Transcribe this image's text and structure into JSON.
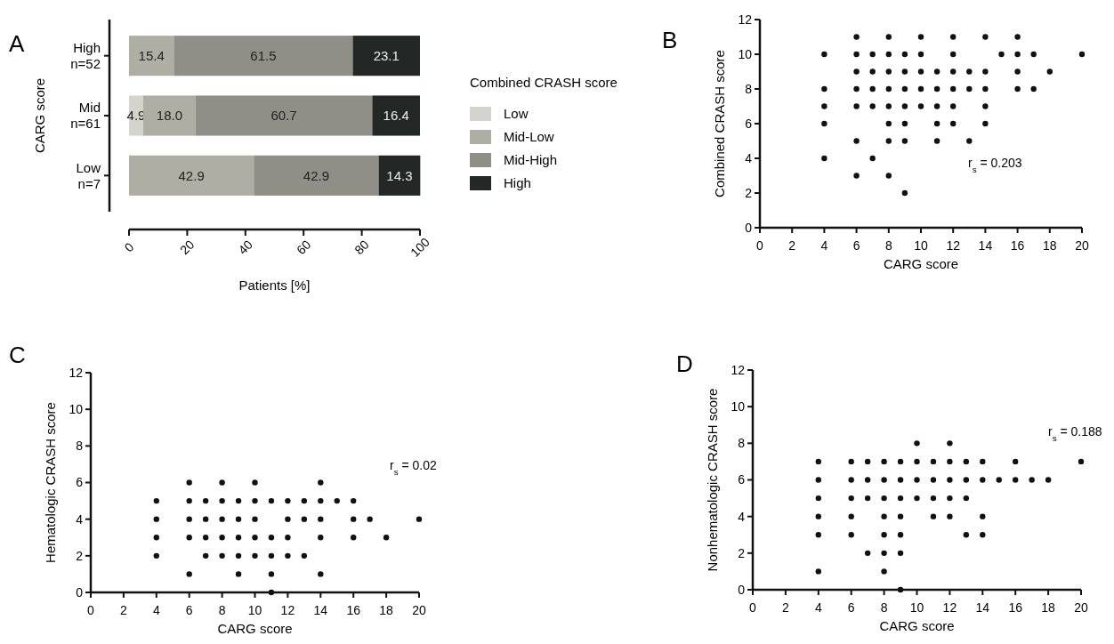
{
  "chart_data": [
    {
      "type": "bar",
      "title": "A",
      "orientation": "horizontal",
      "stacked": true,
      "categories": [
        "High\nn=52",
        "Mid\nn=61",
        "Low\nn=7"
      ],
      "ylabel": "CARG score",
      "xlabel": "Patients [%]",
      "xlim": [
        0,
        100
      ],
      "xticks": [
        0,
        20,
        40,
        60,
        80,
        100
      ],
      "legend": "right",
      "legend_title": "Combined CRASH score",
      "series": [
        {
          "name": "Low",
          "color": "#d4d4cc",
          "values": [
            null,
            4.9,
            null
          ],
          "value_labels": [
            null,
            "4.9",
            null
          ]
        },
        {
          "name": "Mid-Low",
          "color": "#aeaea5",
          "values": [
            15.4,
            18.0,
            42.9
          ],
          "value_labels": [
            "15.4",
            "18.0",
            "42.9"
          ]
        },
        {
          "name": "Mid-High",
          "color": "#8f8f88",
          "values": [
            61.5,
            60.7,
            42.9
          ],
          "value_labels": [
            "61.5",
            "60.7",
            "42.9"
          ]
        },
        {
          "name": "High",
          "color": "#232826",
          "values": [
            23.1,
            16.4,
            14.3
          ],
          "value_labels": [
            "23.1",
            "16.4",
            "14.3"
          ]
        }
      ]
    },
    {
      "type": "scatter",
      "title": "B",
      "xlabel": "CARG score",
      "ylabel": "Combined CRASH score",
      "xlim": [
        0,
        20
      ],
      "xticks": [
        0,
        2,
        4,
        6,
        8,
        10,
        12,
        14,
        16,
        18,
        20
      ],
      "ylim": [
        0,
        12
      ],
      "yticks": [
        0,
        2,
        4,
        6,
        8,
        10,
        12
      ],
      "marker": "circle",
      "annotations": [
        "r$_{s}$ = 0.203"
      ],
      "series": [
        {
          "color": "#111111",
          "x": [
            6,
            8,
            10,
            12,
            14,
            16,
            4,
            6,
            7,
            8,
            9,
            10,
            12,
            15,
            16,
            17,
            20,
            6,
            7,
            8,
            9,
            10,
            11,
            12,
            13,
            14,
            16,
            18,
            4,
            6,
            7,
            8,
            9,
            10,
            11,
            12,
            13,
            14,
            16,
            17,
            4,
            6,
            7,
            8,
            9,
            10,
            11,
            12,
            14,
            4,
            8,
            9,
            11,
            12,
            14,
            6,
            8,
            9,
            11,
            13,
            4,
            7,
            6,
            8,
            9
          ],
          "values": [
            11,
            11,
            11,
            11,
            11,
            11,
            10,
            10,
            10,
            10,
            10,
            10,
            10,
            10,
            10,
            10,
            10,
            9,
            9,
            9,
            9,
            9,
            9,
            9,
            9,
            9,
            9,
            9,
            8,
            8,
            8,
            8,
            8,
            8,
            8,
            8,
            8,
            8,
            8,
            8,
            7,
            7,
            7,
            7,
            7,
            7,
            7,
            7,
            7,
            6,
            6,
            6,
            6,
            6,
            6,
            5,
            5,
            5,
            5,
            5,
            4,
            4,
            3,
            3,
            2
          ]
        }
      ]
    },
    {
      "type": "scatter",
      "title": "C",
      "xlabel": "CARG score",
      "ylabel": "Hematologic CRASH score",
      "xlim": [
        0,
        20
      ],
      "xticks": [
        0,
        2,
        4,
        6,
        8,
        10,
        12,
        14,
        16,
        18,
        20
      ],
      "ylim": [
        0,
        12
      ],
      "yticks": [
        0,
        2,
        4,
        6,
        8,
        10,
        12
      ],
      "marker": "circle",
      "annotations": [
        "r$_{s}$ = 0.02"
      ],
      "series": [
        {
          "color": "#111111",
          "x": [
            6,
            8,
            10,
            14,
            4,
            6,
            7,
            8,
            9,
            10,
            11,
            12,
            13,
            14,
            15,
            16,
            4,
            6,
            7,
            8,
            9,
            10,
            12,
            13,
            14,
            16,
            17,
            20,
            4,
            6,
            7,
            8,
            9,
            10,
            11,
            12,
            14,
            16,
            18,
            4,
            7,
            8,
            9,
            10,
            11,
            12,
            13,
            6,
            9,
            11,
            14,
            11
          ],
          "values": [
            6,
            6,
            6,
            6,
            5,
            5,
            5,
            5,
            5,
            5,
            5,
            5,
            5,
            5,
            5,
            5,
            4,
            4,
            4,
            4,
            4,
            4,
            4,
            4,
            4,
            4,
            4,
            4,
            3,
            3,
            3,
            3,
            3,
            3,
            3,
            3,
            3,
            3,
            3,
            2,
            2,
            2,
            2,
            2,
            2,
            2,
            2,
            1,
            1,
            1,
            1,
            0
          ]
        }
      ]
    },
    {
      "type": "scatter",
      "title": "D",
      "xlabel": "CARG score",
      "ylabel": "Nonhematologic CRASH score",
      "xlim": [
        0,
        20
      ],
      "xticks": [
        0,
        2,
        4,
        6,
        8,
        10,
        12,
        14,
        16,
        18,
        20
      ],
      "ylim": [
        0,
        12
      ],
      "yticks": [
        0,
        2,
        4,
        6,
        8,
        10,
        12
      ],
      "marker": "circle",
      "annotations": [
        "r$_{s}$ = 0.188"
      ],
      "series": [
        {
          "color": "#111111",
          "x": [
            10,
            12,
            4,
            6,
            7,
            8,
            9,
            10,
            11,
            12,
            13,
            14,
            16,
            20,
            4,
            6,
            7,
            8,
            9,
            10,
            11,
            12,
            13,
            14,
            15,
            16,
            17,
            18,
            4,
            6,
            7,
            8,
            9,
            10,
            11,
            12,
            13,
            4,
            6,
            8,
            9,
            11,
            12,
            14,
            4,
            6,
            8,
            9,
            13,
            14,
            7,
            8,
            9,
            4,
            8,
            9
          ],
          "values": [
            8,
            8,
            7,
            7,
            7,
            7,
            7,
            7,
            7,
            7,
            7,
            7,
            7,
            7,
            6,
            6,
            6,
            6,
            6,
            6,
            6,
            6,
            6,
            6,
            6,
            6,
            6,
            6,
            5,
            5,
            5,
            5,
            5,
            5,
            5,
            5,
            5,
            4,
            4,
            4,
            4,
            4,
            4,
            4,
            3,
            3,
            3,
            3,
            3,
            3,
            2,
            2,
            2,
            1,
            1,
            0
          ]
        }
      ]
    }
  ]
}
